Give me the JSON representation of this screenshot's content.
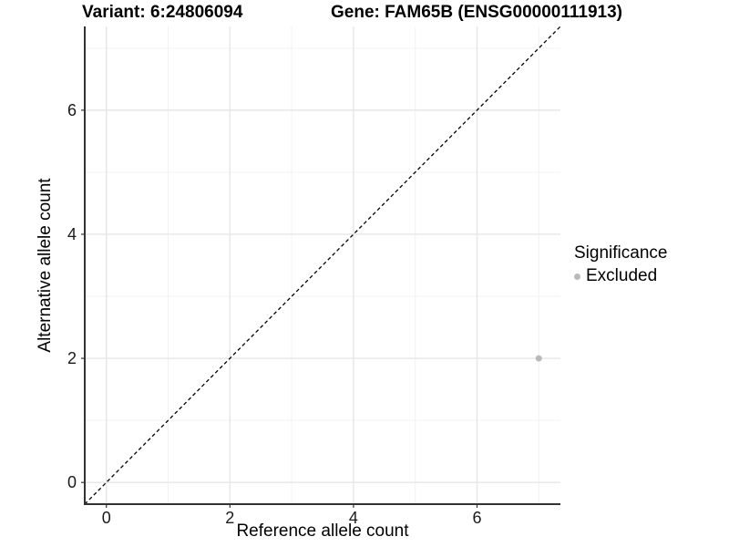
{
  "titles": {
    "variant": "Variant: 6:24806094",
    "gene": "Gene: FAM65B (ENSG00000111913)"
  },
  "legend": {
    "title": "Significance",
    "position": "right",
    "items": [
      {
        "label": "Excluded",
        "marker": "dot",
        "color": "#b9b9b9"
      }
    ]
  },
  "chart_data": {
    "type": "scatter",
    "title_left": "Variant: 6:24806094",
    "title_right": "Gene: FAM65B (ENSG00000111913)",
    "xlabel": "Reference allele count",
    "ylabel": "Alternative allele count",
    "xlim": [
      -0.35,
      7.35
    ],
    "ylim": [
      -0.35,
      7.35
    ],
    "x_ticks": [
      0,
      2,
      4,
      6
    ],
    "y_ticks": [
      0,
      2,
      4,
      6
    ],
    "x_minor_ticks": [
      1,
      3,
      5,
      7
    ],
    "y_minor_ticks": [
      1,
      3,
      5,
      7
    ],
    "grid": "on",
    "legend_position": "right",
    "series": [
      {
        "name": "Excluded",
        "color": "#b9b9b9",
        "points": [
          {
            "x": 7,
            "y": 2
          }
        ]
      }
    ],
    "reference_line": {
      "type": "identity y=x",
      "style": "dashed",
      "color": "#000000"
    }
  },
  "colors": {
    "background": "#ffffff",
    "axis": "#333333",
    "tick_text": "#1a1a1a",
    "grid_major": "#e6e6e6",
    "grid_minor": "#f2f2f2",
    "point": "#b9b9b9"
  }
}
